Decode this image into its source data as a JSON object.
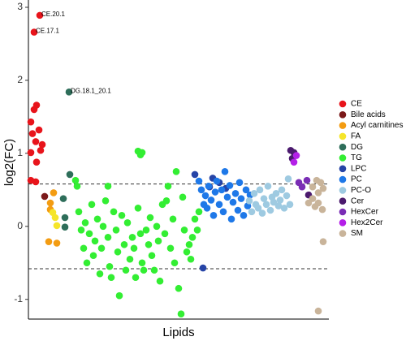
{
  "chart_data": {
    "type": "scatter",
    "x_label": "Lipids",
    "y_label": "log2(FC)",
    "xlim": [
      0,
      370
    ],
    "ylim": [
      -1.27,
      3.1
    ],
    "yticks": [
      -1,
      0,
      1,
      2,
      3
    ],
    "hlines": [
      0.58,
      -0.58
    ],
    "legend": "right",
    "series": [
      {
        "name": "CE",
        "color": "#e8141b",
        "x": [
          14,
          7,
          3,
          7,
          10,
          5,
          13,
          9,
          17,
          3,
          15,
          10,
          3,
          9
        ],
        "values": [
          2.89,
          2.66,
          1.43,
          1.6,
          1.66,
          1.27,
          1.32,
          1.16,
          1.12,
          1.01,
          1.04,
          0.88,
          0.63,
          0.61
        ]
      },
      {
        "name": "Bile acids",
        "color": "#7b1a1a",
        "x": [
          20
        ],
        "values": [
          0.41
        ]
      },
      {
        "name": "Acyl carnitines",
        "color": "#f39c12",
        "x": [
          25,
          35,
          27,
          31,
          27
        ],
        "values": [
          -0.21,
          -0.23,
          0.23,
          0.46,
          0.32
        ]
      },
      {
        "name": "FA",
        "color": "#f5e52a",
        "x": [
          33,
          35,
          30
        ],
        "values": [
          0.12,
          0.01,
          0.19
        ]
      },
      {
        "name": "DG",
        "color": "#2e6e5a",
        "x": [
          50,
          51,
          43,
          45,
          45
        ],
        "values": [
          1.84,
          0.71,
          0.38,
          0.12,
          -0.01
        ]
      },
      {
        "name": "TG",
        "color": "#33ee33",
        "x": [
          58,
          60,
          62,
          65,
          68,
          70,
          72,
          75,
          78,
          80,
          82,
          85,
          88,
          90,
          92,
          95,
          98,
          100,
          102,
          105,
          108,
          110,
          112,
          115,
          118,
          120,
          122,
          125,
          128,
          130,
          132,
          135,
          138,
          140,
          142,
          145,
          148,
          150,
          152,
          155,
          158,
          160,
          162,
          165,
          168,
          170,
          172,
          175,
          178,
          180,
          182,
          185,
          188,
          190,
          192,
          195,
          198,
          200,
          202,
          205,
          208,
          210,
          135,
          138,
          140,
          98
        ],
        "values": [
          0.63,
          0.55,
          0.2,
          -0.05,
          -0.3,
          0.05,
          -0.5,
          -0.1,
          0.3,
          -0.4,
          -0.2,
          0.1,
          -0.65,
          -0.3,
          0.0,
          0.35,
          -0.15,
          -0.55,
          -0.7,
          0.2,
          -0.05,
          -0.35,
          -0.95,
          0.15,
          -0.25,
          -0.6,
          0.05,
          -0.45,
          -0.15,
          -0.3,
          -0.7,
          0.25,
          -0.1,
          -0.5,
          -0.6,
          -0.05,
          -0.25,
          0.12,
          -0.4,
          -0.6,
          0.0,
          -0.2,
          -0.75,
          0.3,
          -0.1,
          0.35,
          0.55,
          -0.3,
          0.1,
          -0.5,
          0.75,
          -0.85,
          -1.2,
          0.4,
          -0.05,
          -0.35,
          -0.25,
          -0.45,
          -0.15,
          0.1,
          -0.05,
          0.2,
          1.03,
          0.98,
          1.01,
          0.55
        ]
      },
      {
        "name": "LPC",
        "color": "#2644a6",
        "x": [
          215,
          205,
          227,
          223,
          235,
          243
        ],
        "values": [
          -0.57,
          0.71,
          0.66,
          0.54,
          0.6,
          0.52
        ]
      },
      {
        "name": "PC",
        "color": "#1e78e8",
        "x": [
          210,
          213,
          216,
          218,
          220,
          222,
          225,
          228,
          230,
          232,
          235,
          238,
          240,
          242,
          245,
          248,
          250,
          252,
          255,
          258,
          260,
          262,
          265,
          268,
          270,
          273
        ],
        "values": [
          0.62,
          0.5,
          0.3,
          0.42,
          0.25,
          0.55,
          0.36,
          0.15,
          0.47,
          0.62,
          0.3,
          0.5,
          0.2,
          0.75,
          0.4,
          0.56,
          0.1,
          0.33,
          0.45,
          0.22,
          0.6,
          0.38,
          0.15,
          0.5,
          0.28,
          0.43
        ]
      },
      {
        "name": "PC-O",
        "color": "#9ecae1",
        "x": [
          272,
          275,
          278,
          280,
          283,
          285,
          288,
          290,
          293,
          295,
          298,
          300,
          302,
          305,
          308,
          310,
          312,
          315,
          318,
          320,
          322
        ],
        "values": [
          0.35,
          0.2,
          0.45,
          0.3,
          0.25,
          0.5,
          0.18,
          0.38,
          0.3,
          0.55,
          0.22,
          0.4,
          0.33,
          0.45,
          0.28,
          0.36,
          0.5,
          0.25,
          0.42,
          0.65,
          0.3
        ]
      },
      {
        "name": "Cer",
        "color": "#4b1a6e",
        "x": [
          323,
          327,
          325,
          345
        ],
        "values": [
          1.04,
          1.01,
          0.93,
          0.43
        ]
      },
      {
        "name": "HexCer",
        "color": "#7a2db5",
        "x": [
          333,
          337,
          343
        ],
        "values": [
          0.6,
          0.54,
          0.63
        ]
      },
      {
        "name": "Hex2Cer",
        "color": "#b41fe8",
        "x": [
          330,
          327
        ],
        "values": [
          0.97,
          0.88
        ]
      },
      {
        "name": "SM",
        "color": "#c9b49a",
        "x": [
          350,
          355,
          360,
          363,
          350,
          357,
          345,
          362,
          363,
          357,
          353,
          357
        ],
        "values": [
          0.54,
          0.63,
          0.6,
          0.52,
          0.38,
          0.32,
          0.32,
          0.23,
          -0.21,
          -1.16,
          0.27,
          0.46
        ]
      }
    ],
    "annotations": [
      {
        "text": "CE.20.1",
        "x": 14,
        "y": 2.89
      },
      {
        "text": "CE.17.1",
        "x": 7,
        "y": 2.66
      },
      {
        "text": "DG.18.1_20.1",
        "x": 50,
        "y": 1.84
      }
    ]
  }
}
